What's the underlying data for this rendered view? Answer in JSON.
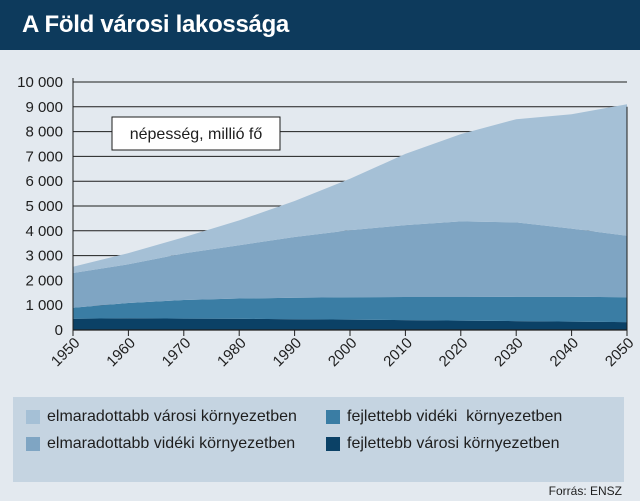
{
  "title": "A Föld városi lakossága",
  "source": "Forrás: ENSZ",
  "chart_data": {
    "type": "area",
    "stacked": true,
    "annotation": "népesség, millió fő",
    "x": [
      1950,
      1960,
      1970,
      1980,
      1990,
      2000,
      2010,
      2020,
      2030,
      2040,
      2050
    ],
    "x_tick_labels": [
      "1950",
      "1960",
      "1970",
      "1980",
      "1990",
      "2000",
      "2010",
      "2020",
      "2030",
      "2040",
      "2050"
    ],
    "ylim": [
      0,
      10000
    ],
    "y_tick_labels": [
      "0",
      "1 000",
      "2 000",
      "3 000",
      "4 000",
      "5 000",
      "6 000",
      "7 000",
      "8 000",
      "9 000",
      "10 000"
    ],
    "y_ticks": [
      0,
      1000,
      2000,
      3000,
      4000,
      5000,
      6000,
      7000,
      8000,
      9000,
      10000
    ],
    "grid": true,
    "legend_position": "bottom",
    "series": [
      {
        "name": "fejlettebb városi környezetben",
        "color": "#0b4166",
        "values": [
          450,
          470,
          460,
          450,
          430,
          420,
          400,
          380,
          360,
          340,
          320
        ]
      },
      {
        "name": "fejlettebb vidéki környezetben",
        "color": "#3a7da4",
        "values": [
          450,
          620,
          750,
          820,
          870,
          900,
          930,
          950,
          980,
          1000,
          1000
        ]
      },
      {
        "name": "elmaradottabb vidéki környezetben",
        "color": "#7fa5c3",
        "values": [
          1400,
          1560,
          1880,
          2150,
          2450,
          2700,
          2900,
          3050,
          3000,
          2750,
          2480
        ]
      },
      {
        "name": "elmaradottabb városi környezetben",
        "color": "#a5c0d6",
        "values": [
          250,
          450,
          650,
          1000,
          1450,
          2080,
          2870,
          3520,
          4160,
          4610,
          5300
        ]
      }
    ]
  },
  "legend": [
    {
      "label": "elmaradottabb városi környezetben",
      "color": "#a5c0d6"
    },
    {
      "label": "fejlettebb vidéki  környezetben",
      "color": "#3a7da4"
    },
    {
      "label": "elmaradottabb vidéki környezetben",
      "color": "#7fa5c3"
    },
    {
      "label": "fejlettebb városi környezetben",
      "color": "#0b4166"
    }
  ]
}
